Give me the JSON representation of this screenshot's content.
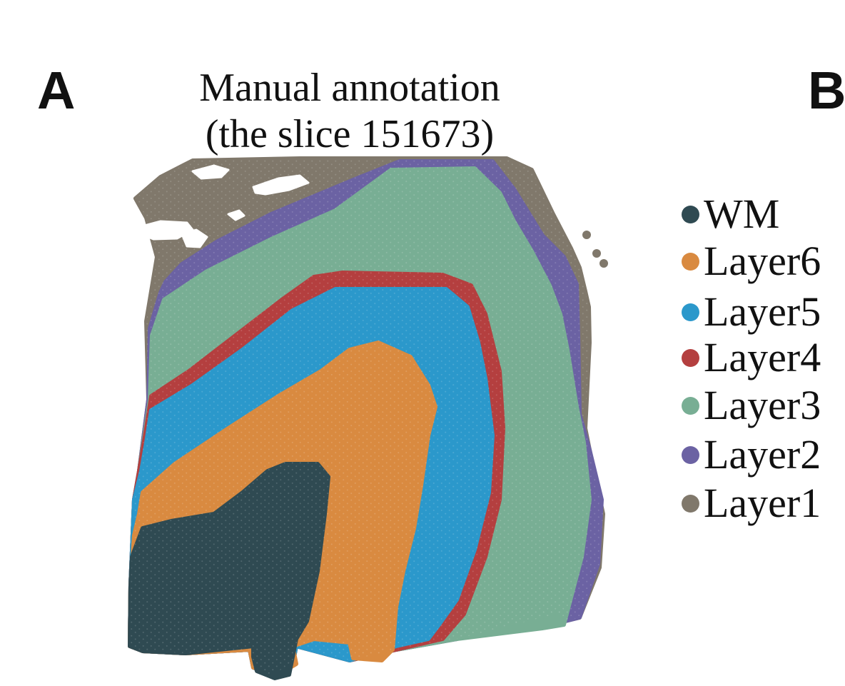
{
  "panel_letters": {
    "left": "A",
    "right": "B"
  },
  "title": {
    "line1": "Manual annotation",
    "line2": "(the slice 151673)"
  },
  "legend": [
    {
      "label": "WM",
      "color": "#2f4a52"
    },
    {
      "label": "Layer6",
      "color": "#d98a40"
    },
    {
      "label": "Layer5",
      "color": "#2b98cb"
    },
    {
      "label": "Layer4",
      "color": "#b43f3f"
    },
    {
      "label": "Layer3",
      "color": "#78ae94"
    },
    {
      "label": "Layer2",
      "color": "#6b62a3"
    },
    {
      "label": "Layer1",
      "color": "#80786b"
    }
  ]
}
